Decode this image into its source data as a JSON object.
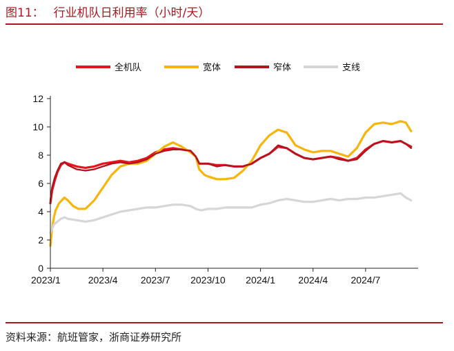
{
  "header": {
    "figure_label": "图11：",
    "title": "行业机队日利用率（小时/天）"
  },
  "footer": {
    "source": "资料来源：航班管家，浙商证券研究所"
  },
  "chart_data": {
    "type": "line",
    "title": "行业机队日利用率（小时/天）",
    "xlabel": "",
    "ylabel": "",
    "ylim": [
      0,
      12
    ],
    "yticks": [
      0,
      2,
      4,
      6,
      8,
      10,
      12
    ],
    "x_range": [
      "2023-01",
      "2024-10"
    ],
    "xticks": [
      {
        "label": "2023/1",
        "month": 0
      },
      {
        "label": "2023/4",
        "month": 3
      },
      {
        "label": "2023/7",
        "month": 6
      },
      {
        "label": "2023/10",
        "month": 9
      },
      {
        "label": "2024/1",
        "month": 12
      },
      {
        "label": "2024/4",
        "month": 15
      },
      {
        "label": "2024/7",
        "month": 18
      }
    ],
    "legend_position": "top",
    "grid": false,
    "series": [
      {
        "name": "全机队",
        "color": "#e8141c",
        "width": 3.2,
        "x": [
          0.0,
          0.1,
          0.25,
          0.4,
          0.6,
          0.8,
          1.0,
          1.5,
          2.0,
          2.5,
          3.0,
          3.5,
          4.0,
          4.5,
          5.0,
          5.5,
          6.0,
          6.5,
          7.0,
          7.5,
          8.0,
          8.3,
          8.5,
          8.8,
          9.0,
          9.5,
          10.0,
          10.5,
          11.0,
          11.5,
          12.0,
          12.5,
          13.0,
          13.5,
          14.0,
          14.5,
          15.0,
          15.5,
          16.0,
          16.5,
          17.0,
          17.5,
          18.0,
          18.5,
          19.0,
          19.5,
          20.0,
          20.3,
          20.6
        ],
        "values": [
          4.6,
          5.5,
          6.2,
          6.8,
          7.3,
          7.5,
          7.4,
          7.2,
          7.1,
          7.2,
          7.4,
          7.5,
          7.6,
          7.5,
          7.6,
          7.8,
          8.2,
          8.4,
          8.5,
          8.4,
          8.3,
          7.9,
          7.4,
          7.4,
          7.4,
          7.3,
          7.3,
          7.2,
          7.2,
          7.4,
          7.8,
          8.1,
          8.6,
          8.5,
          8.1,
          7.8,
          7.7,
          7.8,
          7.9,
          7.8,
          7.6,
          7.8,
          8.4,
          8.8,
          9.0,
          8.9,
          9.0,
          8.8,
          8.6
        ]
      },
      {
        "name": "宽体",
        "color": "#f7b50a",
        "width": 3.2,
        "x": [
          0.0,
          0.1,
          0.2,
          0.3,
          0.5,
          0.8,
          1.0,
          1.3,
          1.6,
          2.0,
          2.5,
          3.0,
          3.5,
          4.0,
          4.5,
          5.0,
          5.5,
          6.0,
          6.5,
          7.0,
          7.5,
          8.0,
          8.3,
          8.5,
          8.8,
          9.0,
          9.5,
          10.0,
          10.5,
          11.0,
          11.5,
          12.0,
          12.5,
          13.0,
          13.5,
          14.0,
          14.5,
          15.0,
          15.5,
          16.0,
          16.5,
          17.0,
          17.5,
          18.0,
          18.5,
          19.0,
          19.5,
          20.0,
          20.3,
          20.6
        ],
        "values": [
          1.6,
          2.8,
          3.6,
          4.1,
          4.6,
          5.0,
          4.8,
          4.4,
          4.2,
          4.2,
          4.8,
          5.7,
          6.6,
          7.2,
          7.4,
          7.4,
          7.6,
          8.1,
          8.6,
          8.9,
          8.6,
          8.2,
          7.9,
          7.0,
          6.6,
          6.5,
          6.3,
          6.3,
          6.4,
          6.9,
          7.6,
          8.7,
          9.4,
          9.8,
          9.6,
          8.7,
          8.4,
          8.2,
          8.3,
          8.3,
          8.1,
          7.9,
          8.5,
          9.6,
          10.2,
          10.3,
          10.2,
          10.4,
          10.3,
          9.7
        ]
      },
      {
        "name": "窄体",
        "color": "#b0141e",
        "width": 2.4,
        "x": [
          0.0,
          0.1,
          0.25,
          0.4,
          0.6,
          0.8,
          1.0,
          1.5,
          2.0,
          2.5,
          3.0,
          3.5,
          4.0,
          4.5,
          5.0,
          5.5,
          6.0,
          6.5,
          7.0,
          7.5,
          8.0,
          8.3,
          8.5,
          8.8,
          9.0,
          9.5,
          10.0,
          10.5,
          11.0,
          11.5,
          12.0,
          12.5,
          13.0,
          13.5,
          14.0,
          14.5,
          15.0,
          15.5,
          16.0,
          16.5,
          17.0,
          17.5,
          18.0,
          18.5,
          19.0,
          19.5,
          20.0,
          20.3,
          20.6
        ],
        "values": [
          4.8,
          5.7,
          6.4,
          6.9,
          7.4,
          7.5,
          7.3,
          7.0,
          6.9,
          7.0,
          7.2,
          7.4,
          7.5,
          7.4,
          7.5,
          7.7,
          8.1,
          8.3,
          8.4,
          8.4,
          8.3,
          7.9,
          7.4,
          7.4,
          7.4,
          7.2,
          7.3,
          7.2,
          7.2,
          7.4,
          7.8,
          8.1,
          8.7,
          8.5,
          8.1,
          7.8,
          7.7,
          7.8,
          7.9,
          7.7,
          7.6,
          7.7,
          8.3,
          8.8,
          9.0,
          8.9,
          9.0,
          8.8,
          8.5
        ]
      },
      {
        "name": "支线",
        "color": "#d6d6d6",
        "width": 3.2,
        "x": [
          0.0,
          0.2,
          0.4,
          0.6,
          0.8,
          1.0,
          1.5,
          2.0,
          2.5,
          3.0,
          3.5,
          4.0,
          4.5,
          5.0,
          5.5,
          6.0,
          6.5,
          7.0,
          7.5,
          8.0,
          8.3,
          8.6,
          9.0,
          9.5,
          10.0,
          10.5,
          11.0,
          11.5,
          12.0,
          12.5,
          13.0,
          13.5,
          14.0,
          14.5,
          15.0,
          15.5,
          16.0,
          16.5,
          17.0,
          17.5,
          18.0,
          18.5,
          19.0,
          19.5,
          20.0,
          20.3,
          20.6
        ],
        "values": [
          2.5,
          3.1,
          3.3,
          3.5,
          3.6,
          3.5,
          3.4,
          3.3,
          3.4,
          3.6,
          3.8,
          4.0,
          4.1,
          4.2,
          4.3,
          4.3,
          4.4,
          4.5,
          4.5,
          4.4,
          4.2,
          4.1,
          4.2,
          4.2,
          4.3,
          4.3,
          4.3,
          4.3,
          4.5,
          4.6,
          4.8,
          4.9,
          4.8,
          4.7,
          4.7,
          4.8,
          4.9,
          4.8,
          4.9,
          4.9,
          5.0,
          5.0,
          5.1,
          5.2,
          5.3,
          5.0,
          4.8
        ]
      }
    ]
  }
}
